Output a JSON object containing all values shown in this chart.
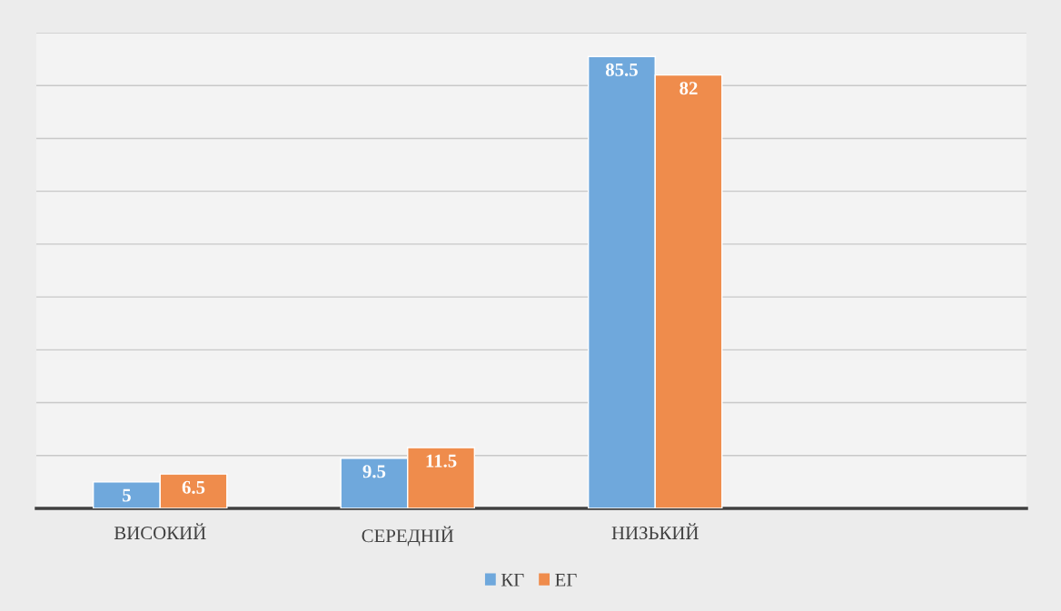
{
  "chart_data": {
    "type": "bar",
    "categories": [
      "ВИСОКИЙ",
      "СЕРЕДНІЙ",
      "НИЗЬКИЙ",
      null
    ],
    "series": [
      {
        "name": "КГ",
        "color": "#6fa8dc",
        "values": [
          5,
          9.5,
          85.5,
          null
        ]
      },
      {
        "name": "ЕГ",
        "color": "#ef8c4c",
        "values": [
          6.5,
          11.5,
          82,
          null
        ]
      }
    ],
    "ylim": [
      0,
      90
    ],
    "yticks": [
      {
        "value": 0,
        "label": null
      },
      {
        "value": 10,
        "label": null
      },
      {
        "value": 20,
        "label": null
      },
      {
        "value": 30,
        "label": null
      },
      {
        "value": 40,
        "label": null
      },
      {
        "value": 50,
        "label": null
      },
      {
        "value": 60,
        "label": null
      },
      {
        "value": 70,
        "label": null
      },
      {
        "value": 80,
        "label": null
      },
      {
        "value": 90,
        "label": null
      }
    ],
    "tick_labels": "x",
    "grid": "y",
    "data_labels": true,
    "legend": "bottom"
  }
}
